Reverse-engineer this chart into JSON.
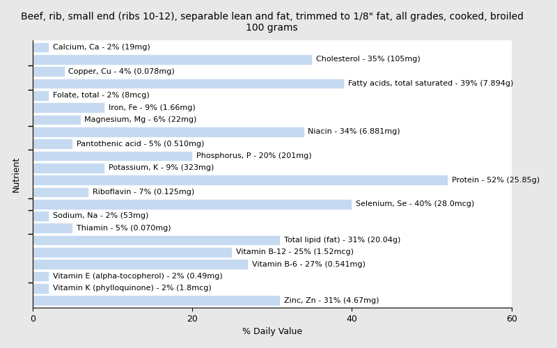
{
  "title": "Beef, rib, small end (ribs 10-12), separable lean and fat, trimmed to 1/8\" fat, all grades, cooked, broiled\n100 grams",
  "xlabel": "% Daily Value",
  "ylabel": "Nutrient",
  "nutrients": [
    "Zinc, Zn - 31% (4.67mg)",
    "Vitamin K (phylloquinone) - 2% (1.8mcg)",
    "Vitamin E (alpha-tocopherol) - 2% (0.49mg)",
    "Vitamin B-6 - 27% (0.541mg)",
    "Vitamin B-12 - 25% (1.52mcg)",
    "Total lipid (fat) - 31% (20.04g)",
    "Thiamin - 5% (0.070mg)",
    "Sodium, Na - 2% (53mg)",
    "Selenium, Se - 40% (28.0mcg)",
    "Riboflavin - 7% (0.125mg)",
    "Protein - 52% (25.85g)",
    "Potassium, K - 9% (323mg)",
    "Phosphorus, P - 20% (201mg)",
    "Pantothenic acid - 5% (0.510mg)",
    "Niacin - 34% (6.881mg)",
    "Magnesium, Mg - 6% (22mg)",
    "Iron, Fe - 9% (1.66mg)",
    "Folate, total - 2% (8mcg)",
    "Fatty acids, total saturated - 39% (7.894g)",
    "Copper, Cu - 4% (0.078mg)",
    "Cholesterol - 35% (105mg)",
    "Calcium, Ca - 2% (19mg)"
  ],
  "values": [
    31,
    2,
    2,
    27,
    25,
    31,
    5,
    2,
    40,
    7,
    52,
    9,
    20,
    5,
    34,
    6,
    9,
    2,
    39,
    4,
    35,
    2
  ],
  "bar_color": "#c5d9f0",
  "text_color": "#000000",
  "background_color": "#e8e8e8",
  "plot_background": "#ffffff",
  "xlim": [
    0,
    60
  ],
  "xticks": [
    0,
    20,
    40,
    60
  ],
  "title_fontsize": 10,
  "label_fontsize": 8,
  "tick_fontsize": 9,
  "ytick_positions": [
    19.5,
    17.5,
    14.5,
    12.5,
    9.5,
    8.5,
    7.5,
    5.5,
    2.5,
    0.5
  ]
}
